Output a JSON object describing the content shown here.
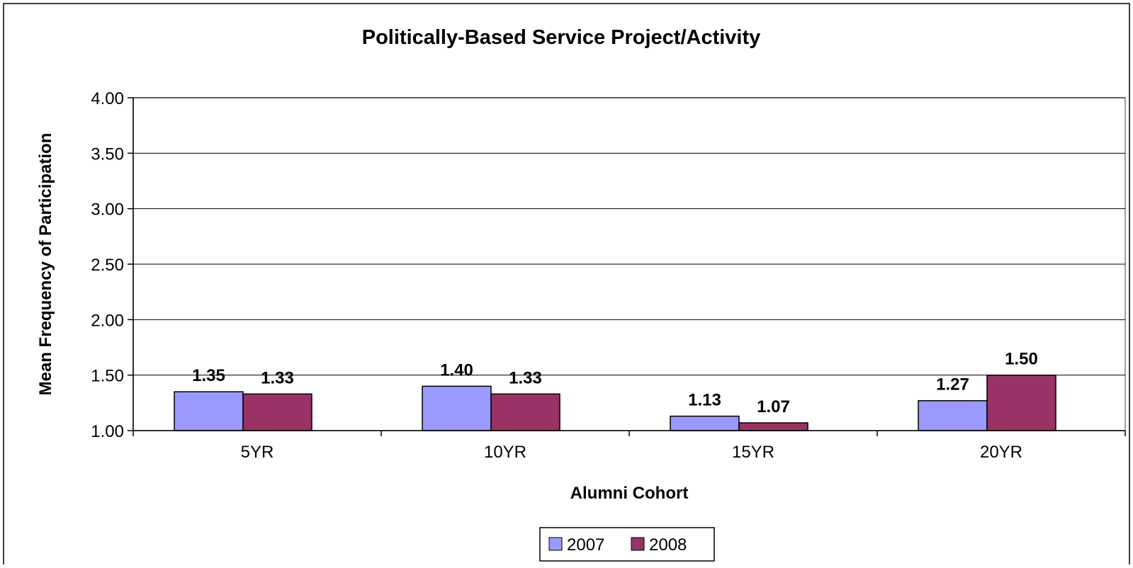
{
  "chart_data": {
    "type": "bar",
    "title": "Politically-Based Service Project/Activity",
    "xlabel": "Alumni Cohort",
    "ylabel": "Mean Frequency of Participation",
    "categories": [
      "5YR",
      "10YR",
      "15YR",
      "20YR"
    ],
    "series": [
      {
        "name": "2007",
        "values": [
          1.35,
          1.4,
          1.13,
          1.27
        ],
        "color": "#9999FF"
      },
      {
        "name": "2008",
        "values": [
          1.33,
          1.33,
          1.07,
          1.5
        ],
        "color": "#993366"
      }
    ],
    "data_labels": [
      [
        "1.35",
        "1.40",
        "1.13",
        "1.27"
      ],
      [
        "1.33",
        "1.33",
        "1.07",
        "1.50"
      ]
    ],
    "ylim": [
      1.0,
      4.0
    ],
    "yticks": [
      "1.00",
      "1.50",
      "2.00",
      "2.50",
      "3.00",
      "3.50",
      "4.00"
    ],
    "grid": true,
    "legend_position": "bottom"
  }
}
